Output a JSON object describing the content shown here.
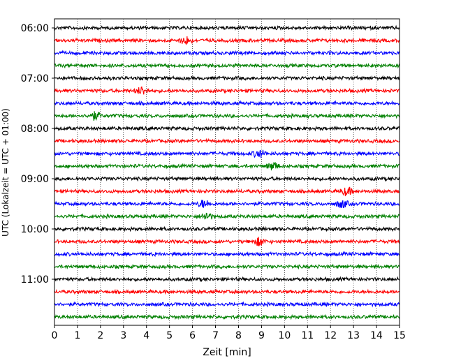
{
  "chart_data": {
    "type": "line",
    "title": "",
    "xlabel": "Zeit  [min]",
    "ylabel": "UTC (Lokalzeit = UTC + 01:00)",
    "xlim": [
      0,
      15
    ],
    "x_ticks": [
      "0",
      "1",
      "2",
      "3",
      "4",
      "5",
      "6",
      "7",
      "8",
      "9",
      "10",
      "11",
      "12",
      "13",
      "14",
      "15"
    ],
    "y_ticks": [
      "06:00",
      "07:00",
      "08:00",
      "09:00",
      "10:00",
      "11:00"
    ],
    "grid": "vertical dotted at each minute",
    "trace_interval_min": 15,
    "trace_colors": [
      "#000000",
      "#ff0000",
      "#0000ff",
      "#008000"
    ],
    "traces": [
      {
        "start": "06:00",
        "color": "#000000"
      },
      {
        "start": "06:15",
        "color": "#ff0000"
      },
      {
        "start": "06:30",
        "color": "#0000ff"
      },
      {
        "start": "06:45",
        "color": "#008000"
      },
      {
        "start": "07:00",
        "color": "#000000"
      },
      {
        "start": "07:15",
        "color": "#ff0000"
      },
      {
        "start": "07:30",
        "color": "#0000ff"
      },
      {
        "start": "07:45",
        "color": "#008000"
      },
      {
        "start": "08:00",
        "color": "#000000"
      },
      {
        "start": "08:15",
        "color": "#ff0000"
      },
      {
        "start": "08:30",
        "color": "#0000ff"
      },
      {
        "start": "08:45",
        "color": "#008000"
      },
      {
        "start": "09:00",
        "color": "#000000"
      },
      {
        "start": "09:15",
        "color": "#ff0000"
      },
      {
        "start": "09:30",
        "color": "#0000ff"
      },
      {
        "start": "09:45",
        "color": "#008000"
      },
      {
        "start": "10:00",
        "color": "#000000"
      },
      {
        "start": "10:15",
        "color": "#ff0000"
      },
      {
        "start": "10:30",
        "color": "#0000ff"
      },
      {
        "start": "10:45",
        "color": "#008000"
      },
      {
        "start": "11:00",
        "color": "#000000"
      },
      {
        "start": "11:15",
        "color": "#ff0000"
      },
      {
        "start": "11:30",
        "color": "#0000ff"
      },
      {
        "start": "11:45",
        "color": "#008000"
      }
    ],
    "events": [
      {
        "trace": "06:15",
        "minute": 5.7
      },
      {
        "trace": "07:15",
        "minute": 3.8
      },
      {
        "trace": "07:45",
        "minute": 1.75
      },
      {
        "trace": "08:30",
        "minute": 8.9
      },
      {
        "trace": "08:45",
        "minute": 9.5
      },
      {
        "trace": "09:15",
        "minute": 12.7
      },
      {
        "trace": "09:30",
        "minute": 6.5
      },
      {
        "trace": "09:30",
        "minute": 12.5
      },
      {
        "trace": "09:45",
        "minute": 6.6
      },
      {
        "trace": "10:15",
        "minute": 8.9
      }
    ]
  }
}
